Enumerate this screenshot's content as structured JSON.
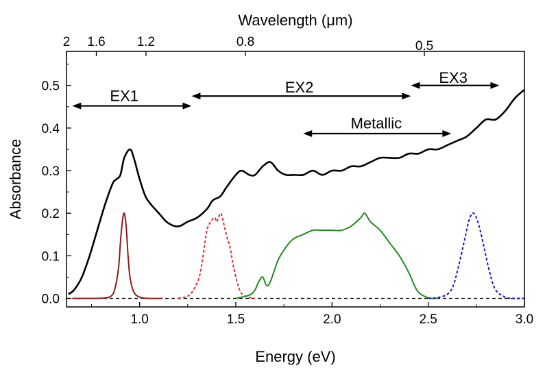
{
  "chart_data": {
    "type": "line",
    "title": "",
    "xlabel": "Energy (eV)",
    "ylabel": "Absorbance",
    "x2label": "Wavelength (μm)",
    "xlim": [
      0.62,
      3.0
    ],
    "ylim": [
      -0.02,
      0.58
    ],
    "xticks": [
      1.0,
      1.5,
      2.0,
      2.5,
      3.0
    ],
    "xtick_labels": [
      "1.0",
      "1.5",
      "2.0",
      "2.5",
      "3.0"
    ],
    "yticks": [
      0.0,
      0.1,
      0.2,
      0.3,
      0.4,
      0.5
    ],
    "ytick_labels": [
      "0.0",
      "0.1",
      "0.2",
      "0.3",
      "0.4",
      "0.5"
    ],
    "top_ticks": [
      {
        "label": "2",
        "energy": 0.62
      },
      {
        "label": "1.6",
        "energy": 0.775
      },
      {
        "label": "1.2",
        "energy": 1.033
      },
      {
        "label": "0.8",
        "energy": 1.55
      },
      {
        "label": "0.5",
        "energy": 2.48
      }
    ],
    "baseline": {
      "y": 0.0,
      "style": "dashed",
      "color": "#000000"
    },
    "series": [
      {
        "name": "Absorbance",
        "color": "#000000",
        "style": "solid",
        "x": [
          0.63,
          0.66,
          0.7,
          0.74,
          0.78,
          0.82,
          0.86,
          0.88,
          0.9,
          0.92,
          0.95,
          0.97,
          1.0,
          1.03,
          1.06,
          1.1,
          1.14,
          1.18,
          1.21,
          1.25,
          1.3,
          1.35,
          1.38,
          1.42,
          1.45,
          1.5,
          1.53,
          1.57,
          1.6,
          1.64,
          1.68,
          1.72,
          1.76,
          1.8,
          1.85,
          1.9,
          1.95,
          2.0,
          2.05,
          2.1,
          2.15,
          2.2,
          2.25,
          2.3,
          2.35,
          2.4,
          2.45,
          2.5,
          2.55,
          2.6,
          2.65,
          2.7,
          2.75,
          2.8,
          2.85,
          2.9,
          2.95,
          3.0
        ],
        "y": [
          0.01,
          0.02,
          0.05,
          0.1,
          0.16,
          0.22,
          0.27,
          0.28,
          0.29,
          0.33,
          0.35,
          0.33,
          0.28,
          0.24,
          0.22,
          0.2,
          0.18,
          0.17,
          0.17,
          0.18,
          0.19,
          0.21,
          0.23,
          0.24,
          0.26,
          0.29,
          0.3,
          0.29,
          0.29,
          0.31,
          0.32,
          0.3,
          0.29,
          0.29,
          0.29,
          0.3,
          0.29,
          0.3,
          0.3,
          0.31,
          0.31,
          0.32,
          0.33,
          0.33,
          0.33,
          0.34,
          0.34,
          0.35,
          0.35,
          0.36,
          0.37,
          0.38,
          0.4,
          0.42,
          0.42,
          0.44,
          0.47,
          0.49
        ]
      },
      {
        "name": "EX1 peak",
        "color": "#8b1a1a",
        "style": "solid",
        "x": [
          0.65,
          0.75,
          0.82,
          0.85,
          0.87,
          0.89,
          0.9,
          0.91,
          0.92,
          0.93,
          0.94,
          0.95,
          0.97,
          1.0,
          1.05,
          1.12
        ],
        "y": [
          0.0,
          0.0,
          0.001,
          0.005,
          0.02,
          0.07,
          0.13,
          0.18,
          0.2,
          0.17,
          0.1,
          0.05,
          0.015,
          0.003,
          0.0,
          0.0
        ]
      },
      {
        "name": "EX2 peak",
        "color": "#e8262b",
        "style": "dashed",
        "x": [
          1.2,
          1.25,
          1.28,
          1.31,
          1.33,
          1.35,
          1.37,
          1.39,
          1.4,
          1.41,
          1.42,
          1.43,
          1.45,
          1.47,
          1.49,
          1.52,
          1.55,
          1.6
        ],
        "y": [
          0.0,
          0.005,
          0.02,
          0.05,
          0.1,
          0.16,
          0.18,
          0.19,
          0.18,
          0.19,
          0.2,
          0.19,
          0.15,
          0.12,
          0.07,
          0.02,
          0.005,
          0.0
        ]
      },
      {
        "name": "Metallic",
        "color": "#1f8a1f",
        "style": "solid",
        "x": [
          1.5,
          1.55,
          1.58,
          1.6,
          1.62,
          1.64,
          1.66,
          1.68,
          1.72,
          1.76,
          1.8,
          1.85,
          1.9,
          1.95,
          2.0,
          2.05,
          2.1,
          2.15,
          2.17,
          2.2,
          2.25,
          2.3,
          2.35,
          2.4,
          2.44,
          2.48,
          2.52,
          2.55
        ],
        "y": [
          0.0,
          0.005,
          0.01,
          0.02,
          0.04,
          0.05,
          0.03,
          0.04,
          0.09,
          0.12,
          0.14,
          0.15,
          0.16,
          0.16,
          0.16,
          0.16,
          0.17,
          0.19,
          0.2,
          0.18,
          0.16,
          0.13,
          0.1,
          0.06,
          0.02,
          0.005,
          0.0,
          0.0
        ]
      },
      {
        "name": "EX3 peak",
        "color": "#1414c8",
        "style": "dashed",
        "x": [
          2.5,
          2.55,
          2.6,
          2.63,
          2.66,
          2.69,
          2.71,
          2.73,
          2.75,
          2.77,
          2.79,
          2.82,
          2.85,
          2.9,
          2.95,
          3.0
        ],
        "y": [
          0.0,
          0.002,
          0.01,
          0.03,
          0.08,
          0.14,
          0.18,
          0.2,
          0.19,
          0.16,
          0.12,
          0.06,
          0.02,
          0.003,
          0.0,
          0.0
        ]
      }
    ],
    "annotations": [
      {
        "label": "EX1",
        "x1": 0.65,
        "x2": 1.27,
        "y": 0.452,
        "label_x": 0.92,
        "label_y": 0.475
      },
      {
        "label": "EX2",
        "x1": 1.27,
        "x2": 2.41,
        "y": 0.475,
        "label_x": 1.83,
        "label_y": 0.495
      },
      {
        "label": "Metallic",
        "x1": 1.85,
        "x2": 2.62,
        "y": 0.387,
        "label_x": 2.23,
        "label_y": 0.41
      },
      {
        "label": "EX3",
        "x1": 2.41,
        "x2": 2.87,
        "y": 0.5,
        "label_x": 2.63,
        "label_y": 0.517
      }
    ]
  }
}
